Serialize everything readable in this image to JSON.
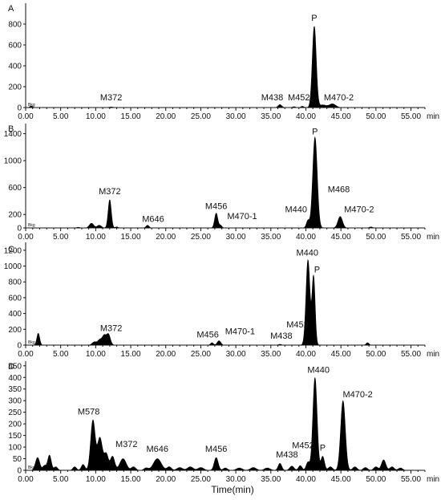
{
  "figure": {
    "xlabel": "Time(min)",
    "x_unit": "min",
    "x_ticks": [
      "0.00",
      "5.00",
      "10.00",
      "15.00",
      "20.00",
      "25.00",
      "30.00",
      "35.00",
      "40.00",
      "45.00",
      "50.00",
      "55.00"
    ]
  },
  "chart_data": [
    {
      "type": "area",
      "panel": "A",
      "xlim": [
        0,
        57
      ],
      "ylim": [
        0,
        1000
      ],
      "yticks": [
        0,
        200,
        400,
        600,
        800
      ],
      "baseline_label": "Bkg",
      "peaks": [
        {
          "x": 0.8,
          "y": 15,
          "w": 0.2
        },
        {
          "x": 12.2,
          "y": 5,
          "w": 0.3
        },
        {
          "x": 36.3,
          "y": 28,
          "w": 0.25
        },
        {
          "x": 38.3,
          "y": 8,
          "w": 0.2
        },
        {
          "x": 39.5,
          "y": 12,
          "w": 0.2
        },
        {
          "x": 41.2,
          "y": 780,
          "w": 0.28
        },
        {
          "x": 42.4,
          "y": 25,
          "w": 0.5
        },
        {
          "x": 43.8,
          "y": 35,
          "w": 0.45
        }
      ],
      "annotations": [
        {
          "text": "M372",
          "x": 12.2,
          "y": 70
        },
        {
          "text": "M438",
          "x": 35.2,
          "y": 70
        },
        {
          "text": "M452",
          "x": 39.0,
          "y": 70
        },
        {
          "text": "P",
          "x": 41.2,
          "y": 830
        },
        {
          "text": "M470-2",
          "x": 44.7,
          "y": 70
        }
      ]
    },
    {
      "type": "area",
      "panel": "B",
      "xlim": [
        0,
        57
      ],
      "ylim": [
        0,
        1550
      ],
      "yticks": [
        0,
        200,
        600,
        1000,
        1400
      ],
      "baseline_label": "Bkg",
      "peaks": [
        {
          "x": 7.5,
          "y": 10,
          "w": 0.2
        },
        {
          "x": 9.4,
          "y": 70,
          "w": 0.3
        },
        {
          "x": 10.5,
          "y": 40,
          "w": 0.3
        },
        {
          "x": 12.0,
          "y": 420,
          "w": 0.22
        },
        {
          "x": 13.0,
          "y": 15,
          "w": 0.2
        },
        {
          "x": 17.4,
          "y": 40,
          "w": 0.2
        },
        {
          "x": 27.2,
          "y": 220,
          "w": 0.22
        },
        {
          "x": 27.8,
          "y": 40,
          "w": 0.2
        },
        {
          "x": 40.3,
          "y": 110,
          "w": 0.22
        },
        {
          "x": 41.3,
          "y": 1350,
          "w": 0.32
        },
        {
          "x": 44.9,
          "y": 170,
          "w": 0.32
        },
        {
          "x": 49.3,
          "y": 15,
          "w": 0.2
        }
      ],
      "annotations": [
        {
          "text": "M372",
          "x": 12.0,
          "y": 500
        },
        {
          "text": "M646",
          "x": 18.2,
          "y": 90
        },
        {
          "text": "M456",
          "x": 27.2,
          "y": 280
        },
        {
          "text": "M470-1",
          "x": 30.9,
          "y": 130
        },
        {
          "text": "M440",
          "x": 38.6,
          "y": 230
        },
        {
          "text": "P",
          "x": 41.3,
          "y": 1390
        },
        {
          "text": "M468",
          "x": 44.7,
          "y": 530
        },
        {
          "text": "M470-2",
          "x": 47.6,
          "y": 230
        }
      ]
    },
    {
      "type": "area",
      "panel": "C",
      "xlim": [
        0,
        57
      ],
      "ylim": [
        0,
        1300
      ],
      "yticks": [
        0,
        200,
        400,
        600,
        800,
        1000,
        1200
      ],
      "baseline_label": "Bkg",
      "peaks": [
        {
          "x": 1.8,
          "y": 150,
          "w": 0.2
        },
        {
          "x": 9.8,
          "y": 40,
          "w": 0.3
        },
        {
          "x": 10.6,
          "y": 70,
          "w": 0.3
        },
        {
          "x": 11.2,
          "y": 110,
          "w": 0.25
        },
        {
          "x": 11.8,
          "y": 140,
          "w": 0.28
        },
        {
          "x": 26.6,
          "y": 30,
          "w": 0.2
        },
        {
          "x": 27.6,
          "y": 55,
          "w": 0.25
        },
        {
          "x": 36.3,
          "y": 10,
          "w": 0.2
        },
        {
          "x": 40.3,
          "y": 1080,
          "w": 0.28
        },
        {
          "x": 41.1,
          "y": 870,
          "w": 0.22
        },
        {
          "x": 48.8,
          "y": 30,
          "w": 0.2
        }
      ],
      "annotations": [
        {
          "text": "M372",
          "x": 12.2,
          "y": 180
        },
        {
          "text": "M456",
          "x": 26.0,
          "y": 95
        },
        {
          "text": "M470-1",
          "x": 30.6,
          "y": 135
        },
        {
          "text": "M438",
          "x": 36.5,
          "y": 80
        },
        {
          "text": "M452",
          "x": 38.8,
          "y": 225
        },
        {
          "text": "M440",
          "x": 40.2,
          "y": 1130
        },
        {
          "text": "P",
          "x": 41.6,
          "y": 920
        }
      ]
    },
    {
      "type": "area",
      "panel": "D",
      "xlim": [
        0,
        57
      ],
      "ylim": [
        0,
        470
      ],
      "yticks": [
        0,
        50,
        100,
        150,
        200,
        250,
        300,
        350,
        400,
        450
      ],
      "baseline_label": "Bkg",
      "peaks": [
        {
          "x": 1.7,
          "y": 55,
          "w": 0.3
        },
        {
          "x": 2.7,
          "y": 20,
          "w": 0.25
        },
        {
          "x": 3.4,
          "y": 65,
          "w": 0.25
        },
        {
          "x": 4.3,
          "y": 15,
          "w": 0.25
        },
        {
          "x": 7.0,
          "y": 15,
          "w": 0.25
        },
        {
          "x": 8.2,
          "y": 25,
          "w": 0.25
        },
        {
          "x": 9.6,
          "y": 215,
          "w": 0.32
        },
        {
          "x": 10.6,
          "y": 140,
          "w": 0.35
        },
        {
          "x": 11.5,
          "y": 70,
          "w": 0.3
        },
        {
          "x": 12.4,
          "y": 60,
          "w": 0.3
        },
        {
          "x": 13.9,
          "y": 50,
          "w": 0.45
        },
        {
          "x": 15.4,
          "y": 15,
          "w": 0.3
        },
        {
          "x": 17.2,
          "y": 10,
          "w": 0.3
        },
        {
          "x": 18.8,
          "y": 50,
          "w": 0.55
        },
        {
          "x": 20.5,
          "y": 15,
          "w": 0.3
        },
        {
          "x": 22.0,
          "y": 12,
          "w": 0.4
        },
        {
          "x": 23.5,
          "y": 15,
          "w": 0.4
        },
        {
          "x": 25.0,
          "y": 12,
          "w": 0.4
        },
        {
          "x": 27.2,
          "y": 55,
          "w": 0.28
        },
        {
          "x": 28.5,
          "y": 10,
          "w": 0.3
        },
        {
          "x": 30.5,
          "y": 10,
          "w": 0.4
        },
        {
          "x": 32.5,
          "y": 12,
          "w": 0.4
        },
        {
          "x": 34.5,
          "y": 10,
          "w": 0.4
        },
        {
          "x": 36.3,
          "y": 30,
          "w": 0.25
        },
        {
          "x": 38.0,
          "y": 18,
          "w": 0.3
        },
        {
          "x": 39.2,
          "y": 20,
          "w": 0.25
        },
        {
          "x": 40.3,
          "y": 35,
          "w": 0.25
        },
        {
          "x": 41.3,
          "y": 400,
          "w": 0.3
        },
        {
          "x": 42.4,
          "y": 60,
          "w": 0.25
        },
        {
          "x": 43.5,
          "y": 15,
          "w": 0.3
        },
        {
          "x": 45.3,
          "y": 300,
          "w": 0.33
        },
        {
          "x": 47.0,
          "y": 15,
          "w": 0.3
        },
        {
          "x": 48.5,
          "y": 12,
          "w": 0.3
        },
        {
          "x": 50.0,
          "y": 15,
          "w": 0.3
        },
        {
          "x": 51.1,
          "y": 45,
          "w": 0.3
        },
        {
          "x": 52.3,
          "y": 15,
          "w": 0.3
        },
        {
          "x": 53.5,
          "y": 10,
          "w": 0.3
        }
      ],
      "annotations": [
        {
          "text": "M578",
          "x": 9.0,
          "y": 240
        },
        {
          "text": "M372",
          "x": 14.4,
          "y": 100
        },
        {
          "text": "M646",
          "x": 18.8,
          "y": 80
        },
        {
          "text": "M456",
          "x": 27.2,
          "y": 80
        },
        {
          "text": "M452",
          "x": 39.6,
          "y": 95
        },
        {
          "text": "M438",
          "x": 37.3,
          "y": 55
        },
        {
          "text": "P",
          "x": 42.4,
          "y": 85
        },
        {
          "text": "M440",
          "x": 41.8,
          "y": 420
        },
        {
          "text": "M470-2",
          "x": 47.4,
          "y": 315
        }
      ]
    }
  ]
}
